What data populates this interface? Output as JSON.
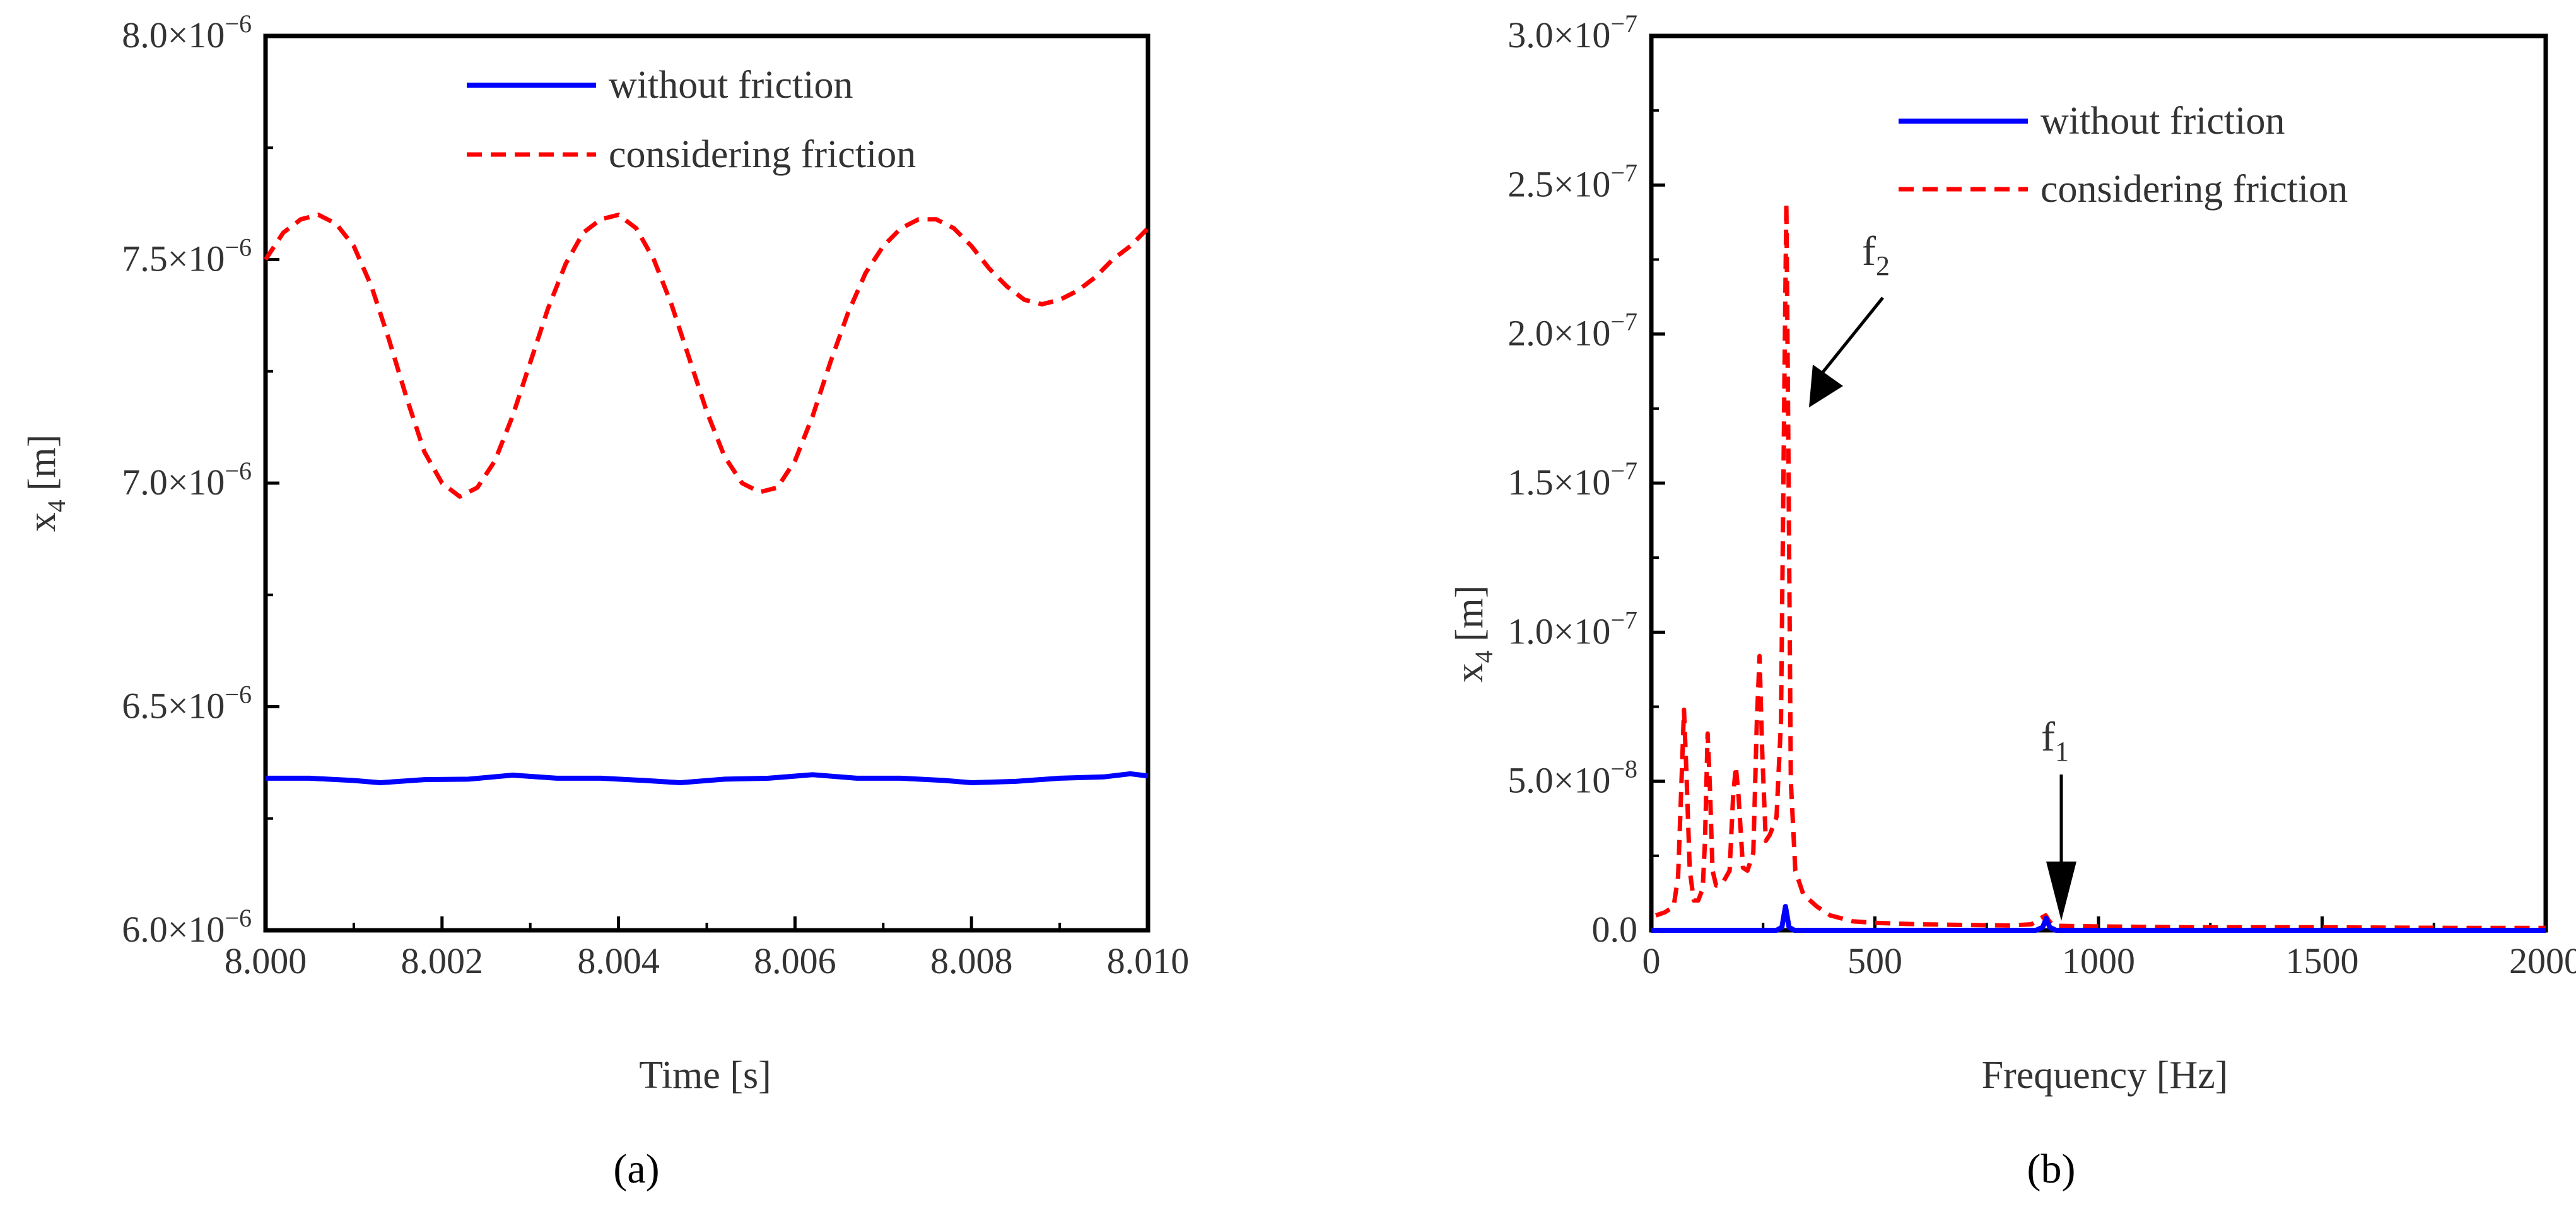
{
  "chart_data": [
    {
      "type": "line",
      "panel_label": "(a)",
      "xlabel": "Time [s]",
      "ylabel": "x4 [m]",
      "ylabel_main": "x",
      "ylabel_sub": "4",
      "ylabel_unit": "[m]",
      "xlim": [
        8.0,
        8.01
      ],
      "ylim": [
        6e-06,
        8e-06
      ],
      "xticks": [
        {
          "value": 8.0,
          "label": "8.000"
        },
        {
          "value": 8.002,
          "label": "8.002"
        },
        {
          "value": 8.004,
          "label": "8.004"
        },
        {
          "value": 8.006,
          "label": "8.006"
        },
        {
          "value": 8.008,
          "label": "8.008"
        },
        {
          "value": 8.01,
          "label": "8.010"
        }
      ],
      "yticks": [
        {
          "value": 6e-06,
          "mant": "6.0",
          "times": "×10",
          "exp": "−6"
        },
        {
          "value": 6.5e-06,
          "mant": "6.5",
          "times": "×10",
          "exp": "−6"
        },
        {
          "value": 7e-06,
          "mant": "7.0",
          "times": "×10",
          "exp": "−6"
        },
        {
          "value": 7.5e-06,
          "mant": "7.5",
          "times": "×10",
          "exp": "−6"
        },
        {
          "value": 8e-06,
          "mant": "8.0",
          "times": "×10",
          "exp": "−6"
        }
      ],
      "legend_position": "top-right",
      "series": [
        {
          "name": "without friction",
          "color": "#0000ff",
          "style": "solid",
          "x": [
            8.0,
            8.0005,
            8.001,
            8.0013,
            8.0018,
            8.0023,
            8.0028,
            8.0033,
            8.0038,
            8.0043,
            8.0047,
            8.0052,
            8.0057,
            8.0062,
            8.0067,
            8.0072,
            8.0077,
            8.008,
            8.0085,
            8.009,
            8.0095,
            8.0098,
            8.01
          ],
          "y": [
            6.34e-06,
            6.34e-06,
            6.335e-06,
            6.33e-06,
            6.337e-06,
            6.338e-06,
            6.347e-06,
            6.34e-06,
            6.34e-06,
            6.335e-06,
            6.33e-06,
            6.338e-06,
            6.34e-06,
            6.348e-06,
            6.34e-06,
            6.34e-06,
            6.335e-06,
            6.33e-06,
            6.333e-06,
            6.34e-06,
            6.343e-06,
            6.35e-06,
            6.345e-06
          ]
        },
        {
          "name": "considering friction",
          "color": "#ff0000",
          "style": "dashed",
          "x": [
            8.0,
            8.0002,
            8.0004,
            8.0006,
            8.0008,
            8.001,
            8.0012,
            8.0014,
            8.0016,
            8.0018,
            8.002,
            8.0022,
            8.0024,
            8.0026,
            8.0028,
            8.003,
            8.0032,
            8.0034,
            8.0036,
            8.0038,
            8.004,
            8.0042,
            8.0044,
            8.0046,
            8.0048,
            8.005,
            8.0052,
            8.0054,
            8.0056,
            8.0058,
            8.006,
            8.0062,
            8.0064,
            8.0066,
            8.0068,
            8.007,
            8.0072,
            8.0074,
            8.0076,
            8.0078,
            8.008,
            8.0082,
            8.0084,
            8.0086,
            8.0088,
            8.009,
            8.0092,
            8.0094,
            8.0096,
            8.0098,
            8.01
          ],
          "y": [
            7.5e-06,
            7.56e-06,
            7.59e-06,
            7.6e-06,
            7.58e-06,
            7.53e-06,
            7.44e-06,
            7.32e-06,
            7.19e-06,
            7.07e-06,
            7e-06,
            6.97e-06,
            6.99e-06,
            7.05e-06,
            7.15e-06,
            7.27e-06,
            7.39e-06,
            7.49e-06,
            7.56e-06,
            7.59e-06,
            7.6e-06,
            7.57e-06,
            7.5e-06,
            7.4e-06,
            7.28e-06,
            7.16e-06,
            7.06e-06,
            7e-06,
            6.98e-06,
            6.99e-06,
            7.05e-06,
            7.15e-06,
            7.27e-06,
            7.38e-06,
            7.47e-06,
            7.53e-06,
            7.57e-06,
            7.59e-06,
            7.59e-06,
            7.57e-06,
            7.53e-06,
            7.48e-06,
            7.44e-06,
            7.41e-06,
            7.4e-06,
            7.41e-06,
            7.43e-06,
            7.46e-06,
            7.5e-06,
            7.53e-06,
            7.57e-06
          ]
        }
      ]
    },
    {
      "type": "line",
      "panel_label": "(b)",
      "xlabel": "Frequency [Hz]",
      "ylabel": "x4 [m]",
      "ylabel_main": "x",
      "ylabel_sub": "4",
      "ylabel_unit": "[m]",
      "xlim": [
        0,
        2000
      ],
      "ylim": [
        0,
        3e-07
      ],
      "xticks": [
        {
          "value": 0,
          "label": "0"
        },
        {
          "value": 500,
          "label": "500"
        },
        {
          "value": 1000,
          "label": "1000"
        },
        {
          "value": 1500,
          "label": "1500"
        },
        {
          "value": 2000,
          "label": "2000"
        }
      ],
      "yticks": [
        {
          "value": 0,
          "mant": "0.0",
          "times": "",
          "exp": ""
        },
        {
          "value": 5e-08,
          "mant": "5.0",
          "times": "×10",
          "exp": "−8"
        },
        {
          "value": 1e-07,
          "mant": "1.0",
          "times": "×10",
          "exp": "−7"
        },
        {
          "value": 1.5e-07,
          "mant": "1.5",
          "times": "×10",
          "exp": "−7"
        },
        {
          "value": 2e-07,
          "mant": "2.0",
          "times": "×10",
          "exp": "−7"
        },
        {
          "value": 2.5e-07,
          "mant": "2.5",
          "times": "×10",
          "exp": "−7"
        },
        {
          "value": 3e-07,
          "mant": "3.0",
          "times": "×10",
          "exp": "−7"
        }
      ],
      "legend_position": "top-right",
      "annotations": [
        {
          "label": "f2",
          "main": "f",
          "sub": "2",
          "x": 305,
          "y": 1.8e-07
        },
        {
          "label": "f1",
          "main": "f",
          "sub": "1",
          "x": 885,
          "y": 3e-09
        }
      ],
      "series": [
        {
          "name": "without friction",
          "color": "#0000ff",
          "style": "solid",
          "x": [
            0,
            280,
            292,
            300,
            308,
            320,
            860,
            875,
            883,
            891,
            905,
            2000
          ],
          "y": [
            0,
            0,
            1e-09,
            8e-09,
            1e-09,
            0,
            0,
            1e-09,
            4e-09,
            1e-09,
            0,
            0
          ]
        },
        {
          "name": "considering friction",
          "color": "#ff0000",
          "style": "dashed",
          "x": [
            10,
            30,
            50,
            60,
            68,
            73,
            78,
            86,
            95,
            105,
            115,
            120,
            126,
            131,
            137,
            145,
            160,
            175,
            183,
            189,
            195,
            205,
            215,
            228,
            236,
            242,
            248,
            256,
            265,
            280,
            290,
            298,
            302,
            306,
            312,
            322,
            340,
            370,
            400,
            450,
            500,
            600,
            700,
            800,
            850,
            870,
            882,
            890,
            900,
            950,
            1000,
            1200,
            1500,
            1800,
            2000
          ],
          "y": [
            5e-09,
            6e-09,
            8e-09,
            1.8e-08,
            5.2e-08,
            7.4e-08,
            5.5e-08,
            2e-08,
            1e-08,
            1e-08,
            1.4e-08,
            3e-08,
            6.6e-08,
            4.8e-08,
            2e-08,
            1.5e-08,
            1.6e-08,
            2e-08,
            4.5e-08,
            5.5e-08,
            4.5e-08,
            2.1e-08,
            2e-08,
            2.6e-08,
            7e-08,
            9.2e-08,
            6e-08,
            3e-08,
            3.2e-08,
            3.8e-08,
            7e-08,
            1.9e-07,
            2.44e-07,
            1.7e-07,
            5e-08,
            2e-08,
            1.2e-08,
            8e-09,
            5e-09,
            3e-09,
            2.5e-09,
            2e-09,
            1.8e-09,
            1.6e-09,
            2e-09,
            4e-09,
            5e-09,
            3e-09,
            1.5e-09,
            1.4e-09,
            1.3e-09,
            1e-09,
            1e-09,
            8e-10,
            8e-10
          ]
        }
      ]
    }
  ]
}
